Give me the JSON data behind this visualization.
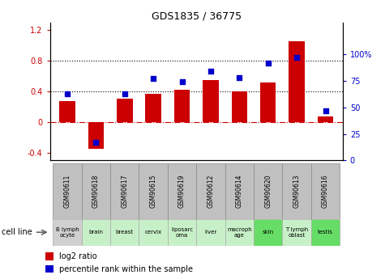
{
  "title": "GDS1835 / 36775",
  "samples": [
    "GSM90611",
    "GSM90618",
    "GSM90617",
    "GSM90615",
    "GSM90619",
    "GSM90612",
    "GSM90614",
    "GSM90620",
    "GSM90613",
    "GSM90616"
  ],
  "cell_lines": [
    "B lymph\nocyte",
    "brain",
    "breast",
    "cervix",
    "liposarc\noma",
    "liver",
    "macroph\nage",
    "skin",
    "T lymph\noblast",
    "testis"
  ],
  "cell_line_colors": [
    "#d0d0d0",
    "#c8f0c8",
    "#c8f0c8",
    "#c8f0c8",
    "#c8f0c8",
    "#c8f0c8",
    "#c8f0c8",
    "#66dd66",
    "#c8f0c8",
    "#66dd66"
  ],
  "log2_ratio": [
    0.27,
    -0.35,
    0.3,
    0.37,
    0.42,
    0.55,
    0.4,
    0.52,
    1.05,
    0.07
  ],
  "percentile_rank": [
    0.63,
    0.17,
    0.63,
    0.77,
    0.74,
    0.84,
    0.78,
    0.92,
    0.97,
    0.47
  ],
  "bar_color": "#cc0000",
  "dot_color": "#0000cc",
  "ylim_left": [
    -0.5,
    1.3
  ],
  "ylim_right": [
    0.0,
    1.3
  ],
  "yticks_left": [
    -0.4,
    0.0,
    0.4,
    0.8,
    1.2
  ],
  "ytick_labels_left": [
    "-0.4",
    "0",
    "0.4",
    "0.8",
    "1.2"
  ],
  "yticks_right": [
    0.0,
    0.25,
    0.5,
    0.75,
    1.0
  ],
  "ytick_labels_right": [
    "0",
    "25",
    "50",
    "75",
    "100%"
  ],
  "hlines": [
    0.4,
    0.8
  ],
  "zero_line": 0.0,
  "legend_items": [
    "log2 ratio",
    "percentile rank within the sample"
  ],
  "cell_line_label": "cell line",
  "gsm_box_color": "#c0c0c0",
  "gsm_box_edge": "#888888"
}
